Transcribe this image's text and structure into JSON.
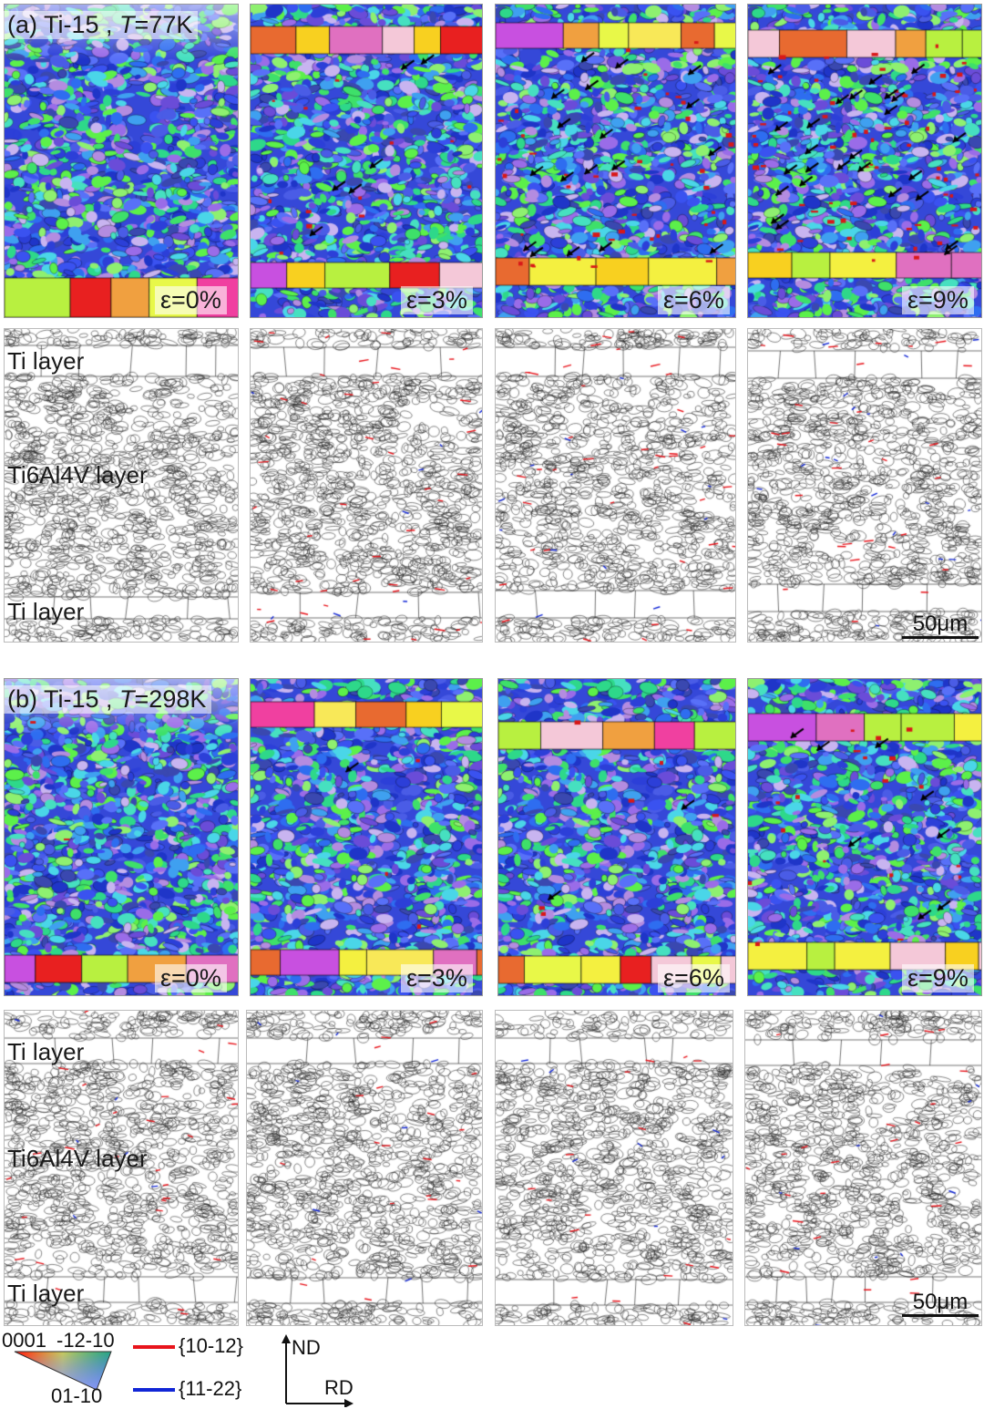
{
  "section_a": {
    "title_prefix": "(a) Ti-15 , ",
    "title_T": "T",
    "title_suffix": "=77K",
    "strains": [
      "ε=0%",
      "ε=3%",
      "ε=6%",
      "ε=9%"
    ],
    "layer_labels": {
      "top": "Ti layer",
      "middle": "Ti6Al4V layer",
      "bottom": "Ti layer"
    },
    "scale_bar": "50μm"
  },
  "section_b": {
    "title_prefix": "(b) Ti-15 , ",
    "title_T": "T",
    "title_suffix": "=298K",
    "strains": [
      "ε=0%",
      "ε=3%",
      "ε=6%",
      "ε=9%"
    ],
    "layer_labels": {
      "top": "Ti layer",
      "middle": "Ti6Al4V layer",
      "bottom": "Ti layer"
    },
    "scale_bar": "50μm"
  },
  "legend": {
    "ipf_top_left": "0001",
    "ipf_top_right": "-12-10",
    "ipf_bottom": "01-10",
    "twin_red_label": "{10-12}",
    "twin_blue_label": "{11-22}",
    "twin_red_color": "#e8141b",
    "twin_blue_color": "#1126d6",
    "axis_nd": "ND",
    "axis_rd": "RD"
  }
}
